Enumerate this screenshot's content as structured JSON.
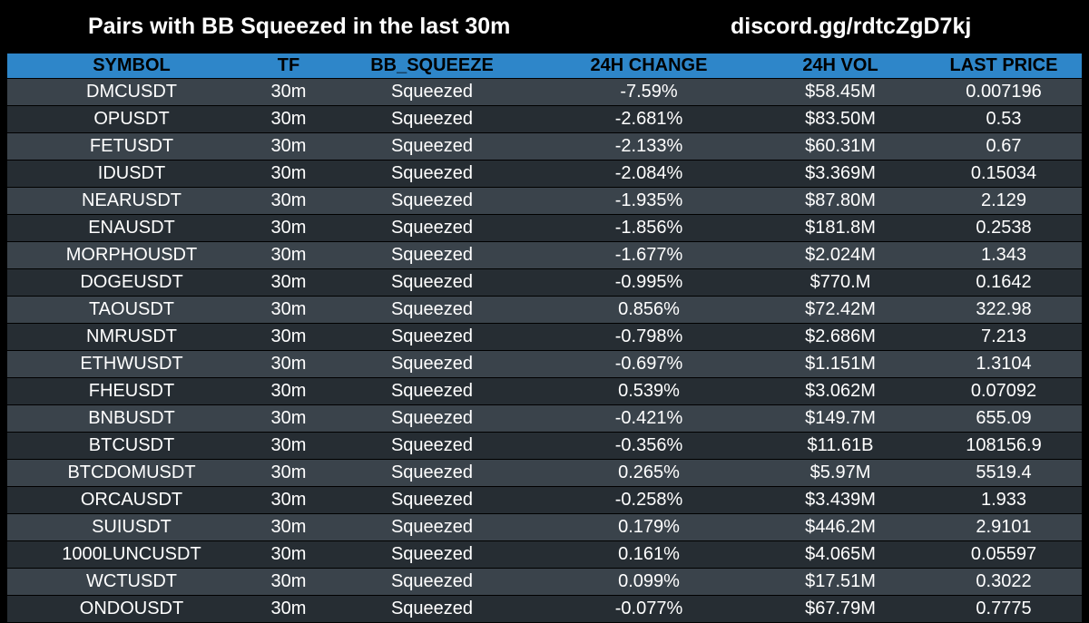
{
  "header": {
    "title": "Pairs with BB Squeezed in the last 30m",
    "discord": "discord.gg/rdtcZgD7kj"
  },
  "columns": [
    "SYMBOL",
    "TF",
    "BB_SQUEEZE",
    "24H CHANGE",
    "24H VOL",
    "LAST PRICE"
  ],
  "rows": [
    [
      "DMCUSDT",
      "30m",
      "Squeezed",
      "-7.59%",
      "$58.45M",
      "0.007196"
    ],
    [
      "OPUSDT",
      "30m",
      "Squeezed",
      "-2.681%",
      "$83.50M",
      "0.53"
    ],
    [
      "FETUSDT",
      "30m",
      "Squeezed",
      "-2.133%",
      "$60.31M",
      "0.67"
    ],
    [
      "IDUSDT",
      "30m",
      "Squeezed",
      "-2.084%",
      "$3.369M",
      "0.15034"
    ],
    [
      "NEARUSDT",
      "30m",
      "Squeezed",
      "-1.935%",
      "$87.80M",
      "2.129"
    ],
    [
      "ENAUSDT",
      "30m",
      "Squeezed",
      "-1.856%",
      "$181.8M",
      "0.2538"
    ],
    [
      "MORPHOUSDT",
      "30m",
      "Squeezed",
      "-1.677%",
      "$2.024M",
      "1.343"
    ],
    [
      "DOGEUSDT",
      "30m",
      "Squeezed",
      "-0.995%",
      "$770.M",
      "0.1642"
    ],
    [
      "TAOUSDT",
      "30m",
      "Squeezed",
      "0.856%",
      "$72.42M",
      "322.98"
    ],
    [
      "NMRUSDT",
      "30m",
      "Squeezed",
      "-0.798%",
      "$2.686M",
      "7.213"
    ],
    [
      "ETHWUSDT",
      "30m",
      "Squeezed",
      "-0.697%",
      "$1.151M",
      "1.3104"
    ],
    [
      "FHEUSDT",
      "30m",
      "Squeezed",
      "0.539%",
      "$3.062M",
      "0.07092"
    ],
    [
      "BNBUSDT",
      "30m",
      "Squeezed",
      "-0.421%",
      "$149.7M",
      "655.09"
    ],
    [
      "BTCUSDT",
      "30m",
      "Squeezed",
      "-0.356%",
      "$11.61B",
      "108156.9"
    ],
    [
      "BTCDOMUSDT",
      "30m",
      "Squeezed",
      "0.265%",
      "$5.97M",
      "5519.4"
    ],
    [
      "ORCAUSDT",
      "30m",
      "Squeezed",
      "-0.258%",
      "$3.439M",
      "1.933"
    ],
    [
      "SUIUSDT",
      "30m",
      "Squeezed",
      "0.179%",
      "$446.2M",
      "2.9101"
    ],
    [
      "1000LUNCUSDT",
      "30m",
      "Squeezed",
      "0.161%",
      "$4.065M",
      "0.05597"
    ],
    [
      "WCTUSDT",
      "30m",
      "Squeezed",
      "0.099%",
      "$17.51M",
      "0.3022"
    ],
    [
      "ONDOUSDT",
      "30m",
      "Squeezed",
      "-0.077%",
      "$67.79M",
      "0.7775"
    ]
  ],
  "colors": {
    "background": "#000000",
    "header_bg": "#2e86c9",
    "row_light": "#3a434b",
    "row_dark": "#262d33",
    "text": "#ffffff"
  }
}
